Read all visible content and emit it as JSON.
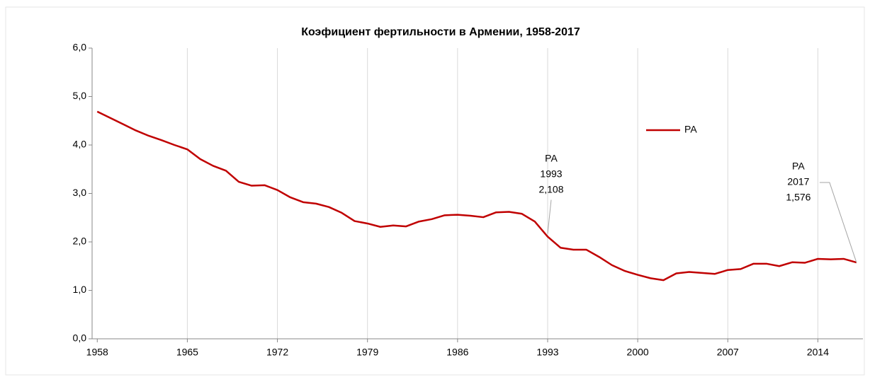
{
  "chart_data": {
    "type": "line",
    "title": "Коэфициент фертильности в Армении, 1958-2017",
    "x": [
      1958,
      1959,
      1960,
      1961,
      1962,
      1963,
      1964,
      1965,
      1966,
      1967,
      1968,
      1969,
      1970,
      1971,
      1972,
      1973,
      1974,
      1975,
      1976,
      1977,
      1978,
      1979,
      1980,
      1981,
      1982,
      1983,
      1984,
      1985,
      1986,
      1987,
      1988,
      1989,
      1990,
      1991,
      1992,
      1993,
      1994,
      1995,
      1996,
      1997,
      1998,
      1999,
      2000,
      2001,
      2002,
      2003,
      2004,
      2005,
      2006,
      2007,
      2008,
      2009,
      2010,
      2011,
      2012,
      2013,
      2014,
      2015,
      2016,
      2017
    ],
    "series": [
      {
        "name": "РА",
        "color": "#c00000",
        "values": [
          4.69,
          4.56,
          4.43,
          4.3,
          4.19,
          4.1,
          4.0,
          3.91,
          3.71,
          3.57,
          3.47,
          3.24,
          3.16,
          3.17,
          3.07,
          2.92,
          2.82,
          2.79,
          2.72,
          2.6,
          2.43,
          2.38,
          2.31,
          2.34,
          2.32,
          2.42,
          2.47,
          2.55,
          2.56,
          2.54,
          2.51,
          2.61,
          2.62,
          2.58,
          2.42,
          2.108,
          1.88,
          1.84,
          1.84,
          1.69,
          1.52,
          1.4,
          1.32,
          1.25,
          1.21,
          1.35,
          1.38,
          1.36,
          1.34,
          1.42,
          1.44,
          1.55,
          1.55,
          1.5,
          1.58,
          1.57,
          1.65,
          1.64,
          1.65,
          1.576
        ]
      }
    ],
    "xlim": [
      1957.6,
      2017.5
    ],
    "xticks": [
      1958,
      1965,
      1972,
      1979,
      1986,
      1993,
      2000,
      2007,
      2014
    ],
    "ylim": [
      0,
      6
    ],
    "yticks": [
      {
        "value": 0,
        "label": "0,0"
      },
      {
        "value": 1,
        "label": "1,0"
      },
      {
        "value": 2,
        "label": "2,0"
      },
      {
        "value": 3,
        "label": "3,0"
      },
      {
        "value": 4,
        "label": "4,0"
      },
      {
        "value": 5,
        "label": "5,0"
      },
      {
        "value": 6,
        "label": "6,0"
      }
    ],
    "grid": true,
    "legend": "top-right",
    "annotations": [
      {
        "x": 1993,
        "lines": [
          "РА",
          "1993",
          "2,108"
        ]
      },
      {
        "x": 2017,
        "lines": [
          "РА",
          "2017",
          "1,576"
        ]
      }
    ]
  }
}
